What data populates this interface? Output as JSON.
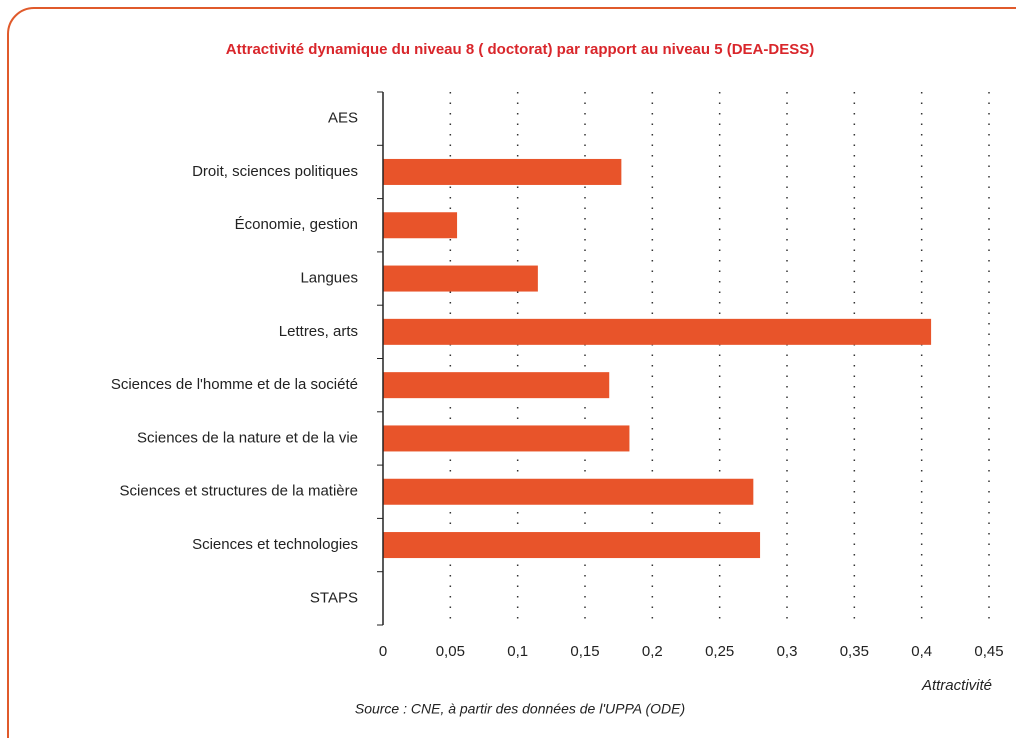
{
  "chart_data": {
    "type": "bar",
    "orientation": "horizontal",
    "title": "Attractivité dynamique du niveau 8 ( doctorat) par rapport au niveau 5 (DEA-DESS)",
    "categories": [
      "AES",
      "Droit, sciences politiques",
      "Économie, gestion",
      "Langues",
      "Lettres, arts",
      "Sciences de l'homme et de la société",
      "Sciences de la nature et de la vie",
      "Sciences et structures de la matière",
      "Sciences et technologies",
      "STAPS"
    ],
    "values": [
      0,
      0.177,
      0.055,
      0.115,
      0.407,
      0.168,
      0.183,
      0.275,
      0.28,
      0
    ],
    "color": "#e8542a",
    "xlim": [
      0,
      0.45
    ],
    "xticks": [
      0,
      {
        "value": 0.05,
        "label": "0,05"
      },
      {
        "value": 0.1,
        "label": "0,1"
      },
      {
        "value": 0.15,
        "label": "0,15"
      },
      {
        "value": 0.2,
        "label": "0,2"
      },
      {
        "value": 0.25,
        "label": "0,25"
      },
      {
        "value": 0.3,
        "label": "0,3"
      },
      {
        "value": 0.35,
        "label": "0,35"
      },
      {
        "value": 0.4,
        "label": "0,4"
      },
      {
        "value": 0.45,
        "label": "0,45"
      }
    ],
    "x_label": "Attractivité",
    "source": "Source : CNE, à partir des données de l'UPPA (ODE)",
    "grid": true
  }
}
